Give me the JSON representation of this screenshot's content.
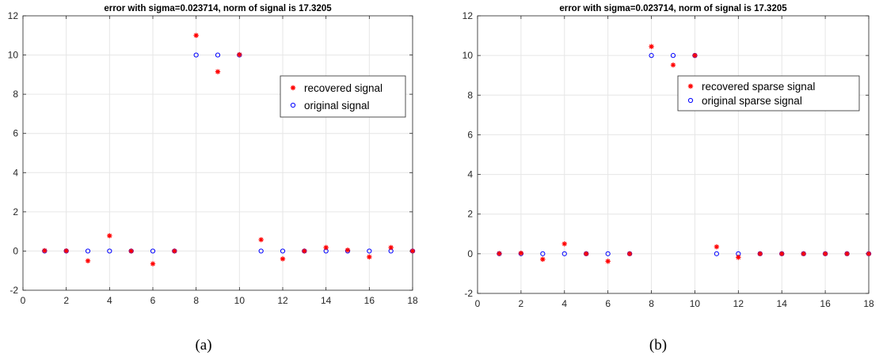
{
  "chart_data": [
    {
      "type": "scatter",
      "title": "error with sigma=0.023714, norm of signal is 17.3205",
      "caption": "(a)",
      "xlabel": "",
      "ylabel": "",
      "xlim": [
        0,
        18
      ],
      "ylim": [
        -2,
        12
      ],
      "xticks": [
        0,
        2,
        4,
        6,
        8,
        10,
        12,
        14,
        16,
        18
      ],
      "yticks": [
        -2,
        0,
        2,
        4,
        6,
        8,
        10,
        12
      ],
      "grid": true,
      "legend_position": "upper-right",
      "x": [
        1,
        2,
        3,
        4,
        5,
        6,
        7,
        8,
        9,
        10,
        11,
        12,
        13,
        14,
        15,
        16,
        17,
        18
      ],
      "series": [
        {
          "name": "recovered signal",
          "marker": "asterisk",
          "color": "#ff0000",
          "values": [
            0.02,
            0.01,
            -0.5,
            0.78,
            0.0,
            -0.65,
            0.0,
            11.0,
            9.15,
            10.02,
            0.58,
            -0.4,
            0.0,
            0.18,
            0.05,
            -0.3,
            0.18,
            0.0
          ]
        },
        {
          "name": "original signal",
          "marker": "circle",
          "color": "#0000ff",
          "values": [
            0,
            0,
            0,
            0,
            0,
            0,
            0,
            10,
            10,
            10,
            0,
            0,
            0,
            0,
            0,
            0,
            0,
            0
          ]
        }
      ]
    },
    {
      "type": "scatter",
      "title": "error with sigma=0.023714, norm of signal is 17.3205",
      "caption": "(b)",
      "xlabel": "",
      "ylabel": "",
      "xlim": [
        0,
        18
      ],
      "ylim": [
        -2,
        12
      ],
      "xticks": [
        0,
        2,
        4,
        6,
        8,
        10,
        12,
        14,
        16,
        18
      ],
      "yticks": [
        -2,
        0,
        2,
        4,
        6,
        8,
        10,
        12
      ],
      "grid": true,
      "legend_position": "upper-right",
      "x": [
        1,
        2,
        3,
        4,
        5,
        6,
        7,
        8,
        9,
        10,
        11,
        12,
        13,
        14,
        15,
        16,
        17,
        18
      ],
      "series": [
        {
          "name": "recovered sparse signal",
          "marker": "asterisk",
          "color": "#ff0000",
          "values": [
            0.01,
            0.03,
            -0.28,
            0.5,
            0.0,
            -0.38,
            0.0,
            10.45,
            9.52,
            10.0,
            0.35,
            -0.18,
            0.0,
            0.0,
            0.0,
            0.0,
            0.0,
            0.0
          ]
        },
        {
          "name": "original sparse signal",
          "marker": "circle",
          "color": "#0000ff",
          "values": [
            0,
            0,
            0,
            0,
            0,
            0,
            0,
            10,
            10,
            10,
            0,
            0,
            0,
            0,
            0,
            0,
            0,
            0
          ]
        }
      ]
    }
  ]
}
